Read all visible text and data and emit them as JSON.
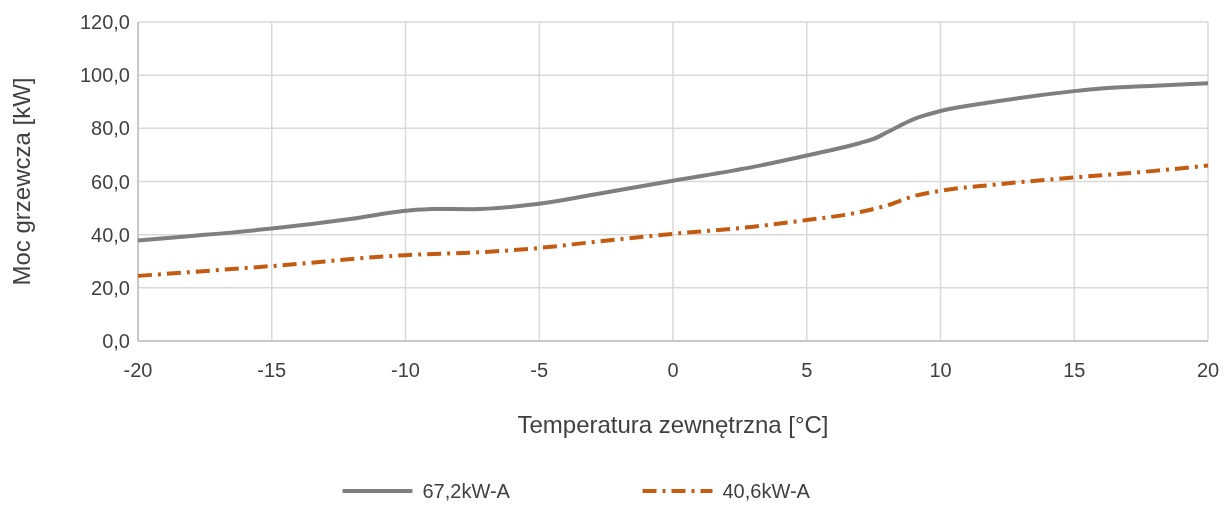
{
  "chart_data": {
    "type": "line",
    "xlabel": "Temperatura zewnętrzna [°C]",
    "ylabel": "Moc grzewcza [kW]",
    "xlim": [
      -20,
      20
    ],
    "xticks": [
      -20,
      -15,
      -10,
      -5,
      0,
      5,
      10,
      15,
      20
    ],
    "ylim": [
      0,
      120
    ],
    "yticks": [
      {
        "value": 0,
        "label": "0,0"
      },
      {
        "value": 20,
        "label": "20,0"
      },
      {
        "value": 40,
        "label": "40,0"
      },
      {
        "value": 60,
        "label": "60,0"
      },
      {
        "value": 80,
        "label": "80,0"
      },
      {
        "value": 100,
        "label": "100,0"
      },
      {
        "value": 120,
        "label": "120,0"
      }
    ],
    "grid": true,
    "legend": "bottom",
    "marker": "none",
    "series": [
      {
        "name": "67,2kW-A",
        "color": "#7f7f7f",
        "line_style": "solid",
        "x": [
          -20,
          -18,
          -15,
          -12,
          -10,
          -9,
          -7.5,
          -6,
          -5,
          -3,
          0,
          3,
          5,
          7,
          7.5,
          8,
          9,
          10,
          12,
          15,
          16,
          18,
          20
        ],
        "values": [
          37.8,
          39.5,
          42.3,
          46,
          49,
          49.7,
          49.6,
          50.5,
          51.6,
          55,
          60.3,
          65.5,
          69.8,
          74.5,
          76,
          78.5,
          83.5,
          86.5,
          90,
          94,
          95,
          96,
          97
        ]
      },
      {
        "name": "40,6kW-A",
        "color": "#c55a11",
        "line_style": "dashed",
        "x": [
          -20,
          -15,
          -10,
          -7,
          -5,
          -3,
          0,
          3,
          5,
          7,
          8,
          9,
          10,
          12,
          15,
          18,
          20
        ],
        "values": [
          24.5,
          28.2,
          32.3,
          33.5,
          35,
          37.2,
          40.3,
          43,
          45.5,
          48.5,
          51,
          54.5,
          56.5,
          58.8,
          61.5,
          64,
          66
        ]
      }
    ]
  }
}
